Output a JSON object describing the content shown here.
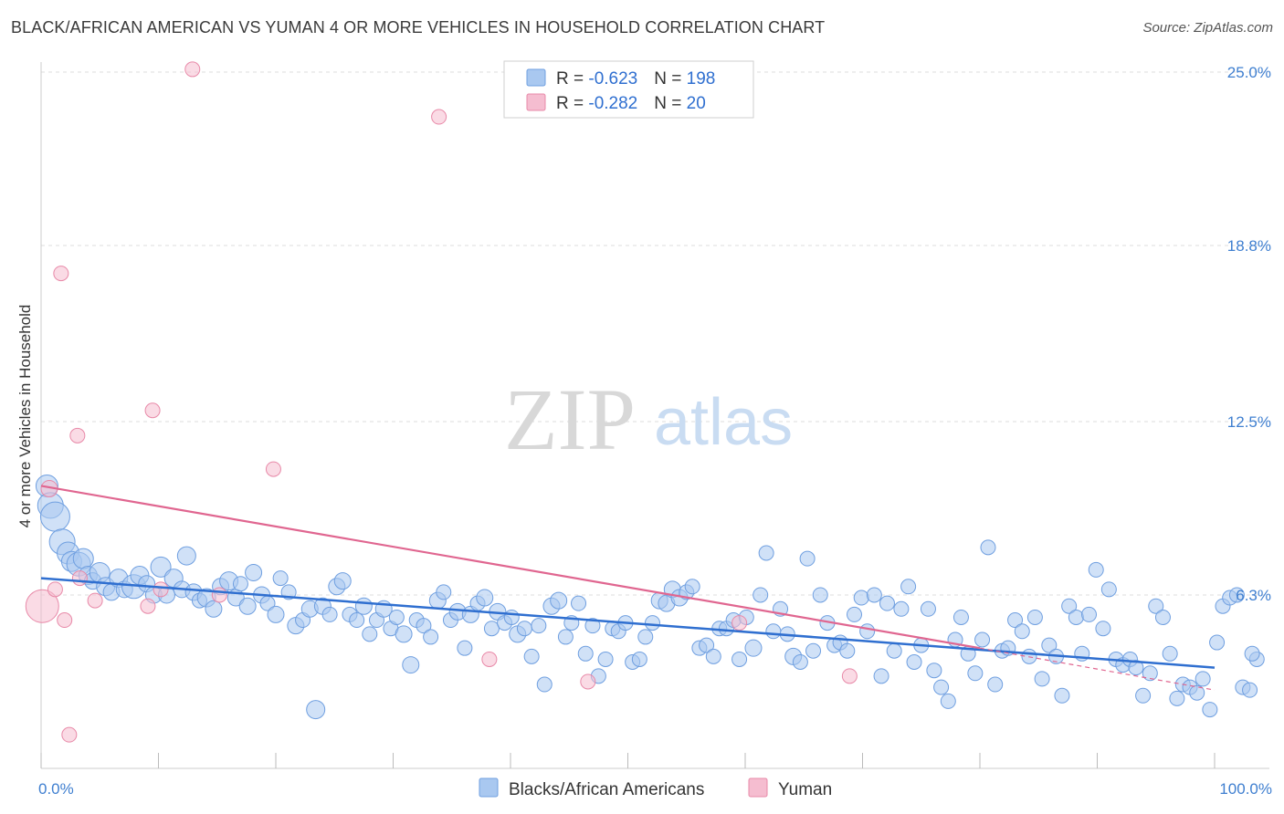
{
  "title": "BLACK/AFRICAN AMERICAN VS YUMAN 4 OR MORE VEHICLES IN HOUSEHOLD CORRELATION CHART",
  "source": "Source: ZipAtlas.com",
  "watermark": {
    "part1": "ZIP",
    "part2": "atlas"
  },
  "colors": {
    "blue_fill": "#a9c8f0",
    "blue_stroke": "#6f9fe0",
    "blue_line": "#2f6fd0",
    "pink_fill": "#f5bdd0",
    "pink_stroke": "#e889a8",
    "pink_line": "#e06690",
    "grid": "#dddddd",
    "tick_text": "#3f7fd0"
  },
  "legend": {
    "rows": [
      {
        "r_label": "R = ",
        "r_value": "-0.623",
        "n_label": "N = ",
        "n_value": "198"
      },
      {
        "r_label": "R = ",
        "r_value": "-0.282",
        "n_label": "N = ",
        "n_value": "20"
      }
    ]
  },
  "chart_data": {
    "type": "scatter",
    "xlabel": "",
    "ylabel": "4 or more Vehicles in Household",
    "xlim": [
      0,
      100
    ],
    "ylim": [
      0,
      25.0
    ],
    "x_tick_labels": [
      "0.0%",
      "100.0%"
    ],
    "y_ticks": [
      6.3,
      12.5,
      18.8,
      25.0
    ],
    "y_tick_labels": [
      "6.3%",
      "12.5%",
      "18.8%",
      "25.0%"
    ],
    "grid": true,
    "legend_position": "top-center",
    "series": [
      {
        "name": "Blacks/African Americans",
        "r": -0.623,
        "n": 198,
        "trend": {
          "x": [
            0,
            100
          ],
          "y": [
            6.9,
            3.7
          ]
        },
        "points": [
          [
            0.5,
            10.2,
            12
          ],
          [
            0.8,
            9.5,
            14
          ],
          [
            1.2,
            9.1,
            16
          ],
          [
            1.8,
            8.2,
            14
          ],
          [
            2.3,
            7.8,
            12
          ],
          [
            2.6,
            7.5,
            11
          ],
          [
            3.2,
            7.4,
            13
          ],
          [
            3.6,
            7.6,
            11
          ],
          [
            4.0,
            7.0,
            10
          ],
          [
            4.4,
            6.8,
            9
          ],
          [
            5.0,
            7.1,
            11
          ],
          [
            5.5,
            6.6,
            10
          ],
          [
            6.0,
            6.4,
            9
          ],
          [
            6.6,
            6.9,
            10
          ],
          [
            7.1,
            6.5,
            9
          ],
          [
            7.9,
            6.6,
            13
          ],
          [
            8.4,
            7.0,
            10
          ],
          [
            9.0,
            6.7,
            9
          ],
          [
            9.6,
            6.3,
            9
          ],
          [
            10.2,
            7.3,
            11
          ],
          [
            10.7,
            6.3,
            9
          ],
          [
            11.3,
            6.9,
            10
          ],
          [
            12.0,
            6.5,
            9
          ],
          [
            12.4,
            7.7,
            10
          ],
          [
            13.0,
            6.4,
            9
          ],
          [
            13.5,
            6.1,
            8
          ],
          [
            14.1,
            6.2,
            10
          ],
          [
            14.7,
            5.8,
            9
          ],
          [
            15.3,
            6.6,
            9
          ],
          [
            16.0,
            6.8,
            10
          ],
          [
            16.6,
            6.2,
            9
          ],
          [
            17.0,
            6.7,
            8
          ],
          [
            17.6,
            5.9,
            9
          ],
          [
            18.1,
            7.1,
            9
          ],
          [
            18.8,
            6.3,
            9
          ],
          [
            19.3,
            6.0,
            8
          ],
          [
            20.0,
            5.6,
            9
          ],
          [
            20.4,
            6.9,
            8
          ],
          [
            21.1,
            6.4,
            8
          ],
          [
            21.7,
            5.2,
            9
          ],
          [
            22.3,
            5.4,
            8
          ],
          [
            22.9,
            5.8,
            9
          ],
          [
            23.4,
            2.2,
            10
          ],
          [
            24.0,
            5.9,
            9
          ],
          [
            24.6,
            5.6,
            8
          ],
          [
            25.2,
            6.6,
            9
          ],
          [
            25.7,
            6.8,
            9
          ],
          [
            26.3,
            5.6,
            8
          ],
          [
            26.9,
            5.4,
            8
          ],
          [
            27.5,
            5.9,
            9
          ],
          [
            28.0,
            4.9,
            8
          ],
          [
            28.6,
            5.4,
            8
          ],
          [
            29.2,
            5.8,
            9
          ],
          [
            29.8,
            5.1,
            8
          ],
          [
            30.3,
            5.5,
            8
          ],
          [
            30.9,
            4.9,
            9
          ],
          [
            31.5,
            3.8,
            9
          ],
          [
            32.0,
            5.4,
            8
          ],
          [
            32.6,
            5.2,
            8
          ],
          [
            33.2,
            4.8,
            8
          ],
          [
            33.8,
            6.1,
            9
          ],
          [
            34.3,
            6.4,
            8
          ],
          [
            34.9,
            5.4,
            8
          ],
          [
            35.5,
            5.7,
            9
          ],
          [
            36.1,
            4.4,
            8
          ],
          [
            36.6,
            5.6,
            9
          ],
          [
            37.2,
            6.0,
            8
          ],
          [
            37.8,
            6.2,
            9
          ],
          [
            38.4,
            5.1,
            8
          ],
          [
            38.9,
            5.7,
            9
          ],
          [
            39.5,
            5.3,
            8
          ],
          [
            40.1,
            5.5,
            8
          ],
          [
            40.6,
            4.9,
            9
          ],
          [
            41.2,
            5.1,
            8
          ],
          [
            41.8,
            4.1,
            8
          ],
          [
            42.4,
            5.2,
            8
          ],
          [
            42.9,
            3.1,
            8
          ],
          [
            43.5,
            5.9,
            9
          ],
          [
            44.1,
            6.1,
            9
          ],
          [
            44.7,
            4.8,
            8
          ],
          [
            45.2,
            5.3,
            8
          ],
          [
            45.8,
            6.0,
            8
          ],
          [
            46.4,
            4.2,
            8
          ],
          [
            47.0,
            5.2,
            8
          ],
          [
            47.5,
            3.4,
            8
          ],
          [
            48.1,
            4.0,
            8
          ],
          [
            48.7,
            5.1,
            8
          ],
          [
            49.2,
            5.0,
            8
          ],
          [
            49.8,
            5.3,
            8
          ],
          [
            50.4,
            3.9,
            8
          ],
          [
            51.0,
            4.0,
            8
          ],
          [
            51.5,
            4.8,
            8
          ],
          [
            52.1,
            5.3,
            8
          ],
          [
            52.7,
            6.1,
            9
          ],
          [
            53.3,
            6.0,
            9
          ],
          [
            53.8,
            6.5,
            9
          ],
          [
            54.4,
            6.2,
            9
          ],
          [
            55.0,
            6.4,
            8
          ],
          [
            55.5,
            6.6,
            8
          ],
          [
            56.1,
            4.4,
            8
          ],
          [
            56.7,
            4.5,
            8
          ],
          [
            57.3,
            4.1,
            8
          ],
          [
            57.8,
            5.1,
            8
          ],
          [
            58.4,
            5.1,
            8
          ],
          [
            59.0,
            5.4,
            8
          ],
          [
            59.5,
            4.0,
            8
          ],
          [
            60.1,
            5.5,
            8
          ],
          [
            60.7,
            4.4,
            9
          ],
          [
            61.3,
            6.3,
            8
          ],
          [
            61.8,
            7.8,
            8
          ],
          [
            62.4,
            5.0,
            8
          ],
          [
            63.0,
            5.8,
            8
          ],
          [
            63.6,
            4.9,
            8
          ],
          [
            64.1,
            4.1,
            9
          ],
          [
            64.7,
            3.9,
            8
          ],
          [
            65.3,
            7.6,
            8
          ],
          [
            65.8,
            4.3,
            8
          ],
          [
            66.4,
            6.3,
            8
          ],
          [
            67.0,
            5.3,
            8
          ],
          [
            67.6,
            4.5,
            8
          ],
          [
            68.1,
            4.6,
            8
          ],
          [
            68.7,
            4.3,
            8
          ],
          [
            69.3,
            5.6,
            8
          ],
          [
            69.9,
            6.2,
            8
          ],
          [
            70.4,
            5.0,
            8
          ],
          [
            71.0,
            6.3,
            8
          ],
          [
            71.6,
            3.4,
            8
          ],
          [
            72.1,
            6.0,
            8
          ],
          [
            72.7,
            4.3,
            8
          ],
          [
            73.3,
            5.8,
            8
          ],
          [
            73.9,
            6.6,
            8
          ],
          [
            74.4,
            3.9,
            8
          ],
          [
            75.0,
            4.5,
            8
          ],
          [
            75.6,
            5.8,
            8
          ],
          [
            76.1,
            3.6,
            8
          ],
          [
            76.7,
            3.0,
            8
          ],
          [
            77.3,
            2.5,
            8
          ],
          [
            77.9,
            4.7,
            8
          ],
          [
            78.4,
            5.5,
            8
          ],
          [
            79.0,
            4.2,
            8
          ],
          [
            79.6,
            3.5,
            8
          ],
          [
            80.2,
            4.7,
            8
          ],
          [
            80.7,
            8.0,
            8
          ],
          [
            81.3,
            3.1,
            8
          ],
          [
            81.9,
            4.3,
            8
          ],
          [
            82.4,
            4.4,
            8
          ],
          [
            83.0,
            5.4,
            8
          ],
          [
            83.6,
            5.0,
            8
          ],
          [
            84.2,
            4.1,
            8
          ],
          [
            84.7,
            5.5,
            8
          ],
          [
            85.3,
            3.3,
            8
          ],
          [
            85.9,
            4.5,
            8
          ],
          [
            86.5,
            4.1,
            8
          ],
          [
            87.0,
            2.7,
            8
          ],
          [
            87.6,
            5.9,
            8
          ],
          [
            88.2,
            5.5,
            8
          ],
          [
            88.7,
            4.2,
            8
          ],
          [
            89.3,
            5.6,
            8
          ],
          [
            89.9,
            7.2,
            8
          ],
          [
            90.5,
            5.1,
            8
          ],
          [
            91.0,
            6.5,
            8
          ],
          [
            91.6,
            4.0,
            8
          ],
          [
            92.2,
            3.8,
            8
          ],
          [
            92.8,
            4.0,
            8
          ],
          [
            93.3,
            3.7,
            8
          ],
          [
            93.9,
            2.7,
            8
          ],
          [
            94.5,
            3.5,
            8
          ],
          [
            95.0,
            5.9,
            8
          ],
          [
            95.6,
            5.5,
            8
          ],
          [
            96.2,
            4.2,
            8
          ],
          [
            96.8,
            2.6,
            8
          ],
          [
            97.3,
            3.1,
            8
          ],
          [
            97.9,
            3.0,
            8
          ],
          [
            98.5,
            2.8,
            8
          ],
          [
            99.0,
            3.3,
            8
          ],
          [
            99.6,
            2.2,
            8
          ],
          [
            100.2,
            4.6,
            8
          ],
          [
            100.7,
            5.9,
            8
          ],
          [
            101.3,
            6.2,
            8
          ],
          [
            101.9,
            6.3,
            8
          ],
          [
            102.4,
            3.0,
            8
          ],
          [
            103.0,
            2.9,
            8
          ],
          [
            103.6,
            4.0,
            8
          ],
          [
            103.2,
            4.2,
            8
          ]
        ]
      },
      {
        "name": "Yuman",
        "r": -0.282,
        "n": 20,
        "trend": {
          "x": [
            0,
            80
          ],
          "y": [
            10.2,
            4.4
          ]
        },
        "trend_dashed": {
          "x": [
            80,
            100
          ],
          "y": [
            4.4,
            2.9
          ]
        },
        "points": [
          [
            0.1,
            5.9,
            18
          ],
          [
            0.7,
            10.1,
            9
          ],
          [
            1.2,
            6.5,
            8
          ],
          [
            1.7,
            17.8,
            8
          ],
          [
            2.0,
            5.4,
            8
          ],
          [
            2.4,
            1.3,
            8
          ],
          [
            3.1,
            12.0,
            8
          ],
          [
            3.3,
            6.9,
            8
          ],
          [
            4.6,
            6.1,
            8
          ],
          [
            9.1,
            5.9,
            8
          ],
          [
            9.5,
            12.9,
            8
          ],
          [
            10.2,
            6.5,
            8
          ],
          [
            12.9,
            25.1,
            8
          ],
          [
            15.2,
            6.3,
            8
          ],
          [
            19.8,
            10.8,
            8
          ],
          [
            33.9,
            23.4,
            8
          ],
          [
            38.2,
            4.0,
            8
          ],
          [
            46.6,
            3.2,
            8
          ],
          [
            59.5,
            5.3,
            8
          ],
          [
            68.9,
            3.4,
            8
          ]
        ]
      }
    ]
  },
  "bottom_legend": [
    "Blacks/African Americans",
    "Yuman"
  ]
}
